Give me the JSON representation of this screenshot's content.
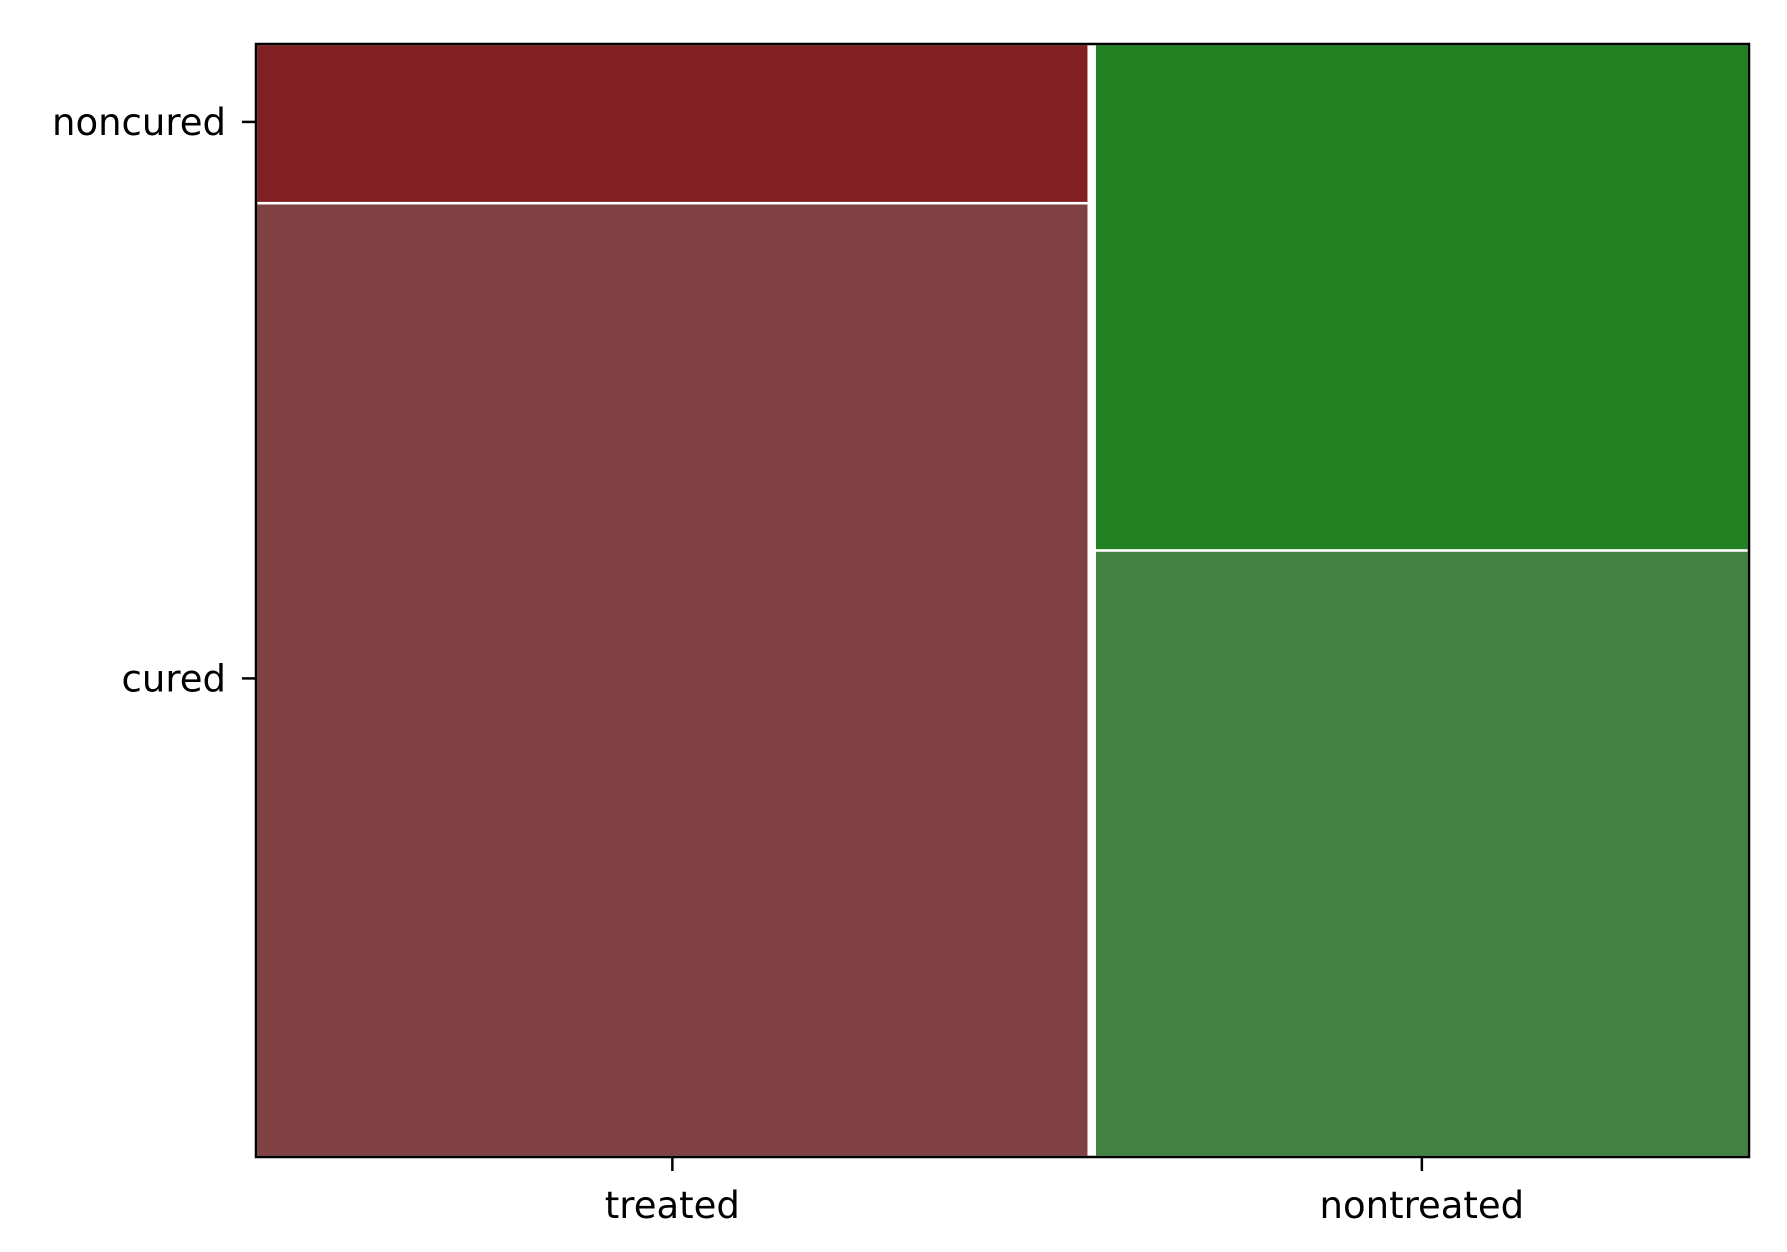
{
  "chart_data": {
    "type": "mosaic",
    "title": "",
    "xlabel": "",
    "ylabel": "",
    "x_categories": [
      "treated",
      "nontreated"
    ],
    "y_categories": [
      "cured",
      "noncured"
    ],
    "x_proportions": [
      0.56,
      0.44
    ],
    "y_proportions": {
      "treated": {
        "cured": 0.857,
        "noncured": 0.143
      },
      "nontreated": {
        "cured": 0.545,
        "noncured": 0.455
      }
    },
    "colors": {
      "treated": {
        "cured": "#7f4141",
        "noncured": "#802022"
      },
      "nontreated": {
        "cured": "#418142",
        "noncured": "#208022"
      }
    },
    "y_tick_positions": {
      "cured": 0.43,
      "noncured": 0.93
    },
    "grid": false,
    "legend": "none"
  }
}
